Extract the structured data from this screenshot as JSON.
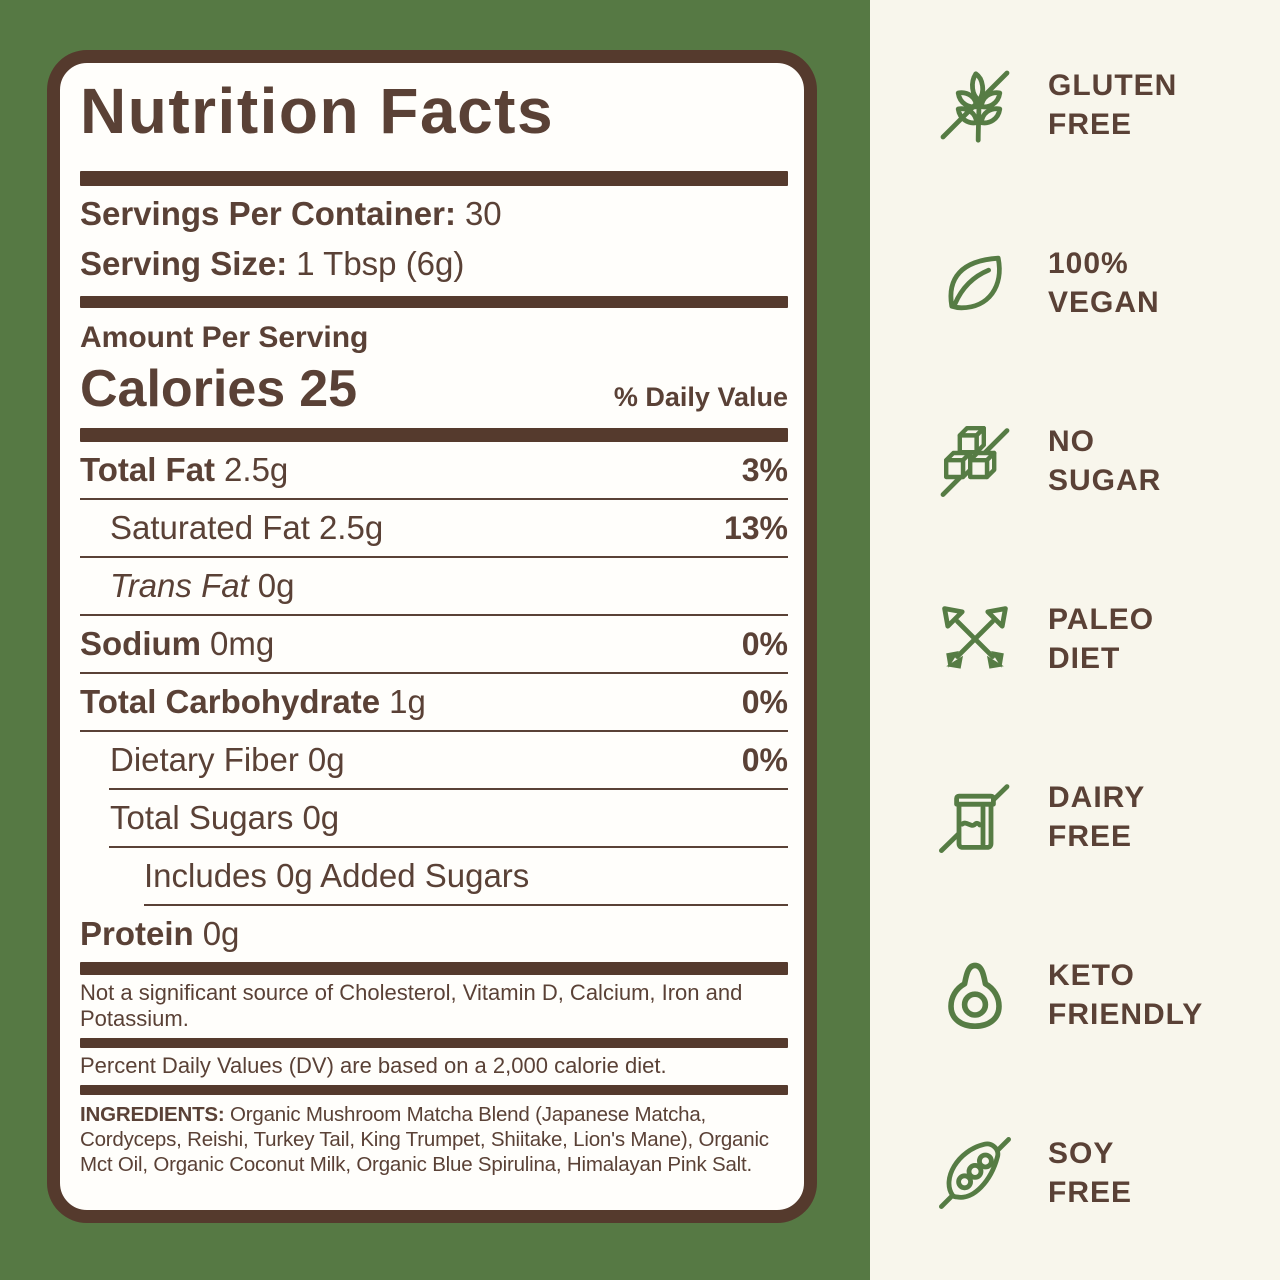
{
  "colors": {
    "green_background": "#567944",
    "icon_green": "#567c44",
    "brown_text": "#5a4136",
    "brown_bar": "#553a2d",
    "panel_background": "#fffefb",
    "cream_background": "#f8f6ec"
  },
  "panel": {
    "title": "Nutrition Facts",
    "servings_label": "Servings Per Container:",
    "servings_value": "30",
    "serving_size_label": "Serving Size:",
    "serving_size_value": "1 Tbsp (6g)",
    "amount_label": "Amount Per Serving",
    "calories_label": "Calories",
    "calories_value": "25",
    "daily_value_label": "% Daily Value",
    "rows": [
      {
        "name": "Total Fat",
        "amount": "2.5g",
        "dv": "3%",
        "name_style": "bold",
        "indent": 0,
        "divider_indent": 0
      },
      {
        "name": "Saturated Fat",
        "amount": "2.5g",
        "dv": "13%",
        "name_style": "regular",
        "indent": 1,
        "divider_indent": 0
      },
      {
        "name": "Trans Fat",
        "amount": "0g",
        "dv": "",
        "name_style": "italic",
        "indent": 1,
        "divider_indent": 0
      },
      {
        "name": "Sodium",
        "amount": "0mg",
        "dv": "0%",
        "name_style": "bold",
        "indent": 0,
        "divider_indent": 0
      },
      {
        "name": "Total Carbohydrate",
        "amount": "1g",
        "dv": "0%",
        "name_style": "bold",
        "indent": 0,
        "divider_indent": 0
      },
      {
        "name": "Dietary Fiber",
        "amount": "0g",
        "dv": "0%",
        "name_style": "regular",
        "indent": 1,
        "divider_indent": 1
      },
      {
        "name": "Total Sugars",
        "amount": "0g",
        "dv": "",
        "name_style": "regular",
        "indent": 1,
        "divider_indent": 1
      },
      {
        "name": "Includes 0g Added Sugars",
        "amount": "",
        "dv": "",
        "name_style": "regular",
        "indent": 2,
        "divider_indent": 2
      },
      {
        "name": "Protein",
        "amount": "0g",
        "dv": "",
        "name_style": "bold",
        "indent": 0,
        "divider_indent": null
      }
    ],
    "footnote1": "Not a significant source of Cholesterol, Vitamin D, Calcium, Iron and Potassium.",
    "footnote2": "Percent Daily Values (DV) are based on a 2,000 calorie diet.",
    "ingredients_label": "INGREDIENTS:",
    "ingredients_text": "Organic Mushroom Matcha Blend (Japanese Matcha, Cordyceps, Reishi, Turkey Tail, King Trumpet, Shiitake, Lion's Mane), Organic Mct Oil, Organic Coconut Milk, Organic Blue Spirulina, Himalayan Pink Salt."
  },
  "badges": [
    {
      "icon": "wheat-slash-icon",
      "lines": [
        "GLUTEN",
        "FREE"
      ]
    },
    {
      "icon": "leaf-icon",
      "lines": [
        "100%",
        "VEGAN"
      ]
    },
    {
      "icon": "sugar-cubes-slash-icon",
      "lines": [
        "NO",
        "SUGAR"
      ]
    },
    {
      "icon": "crossed-arrows-icon",
      "lines": [
        "PALEO",
        "DIET"
      ]
    },
    {
      "icon": "milk-carton-slash-icon",
      "lines": [
        "DAIRY",
        "FREE"
      ]
    },
    {
      "icon": "avocado-icon",
      "lines": [
        "KETO",
        "FRIENDLY"
      ]
    },
    {
      "icon": "soy-pod-slash-icon",
      "lines": [
        "SOY",
        "FREE"
      ]
    }
  ]
}
